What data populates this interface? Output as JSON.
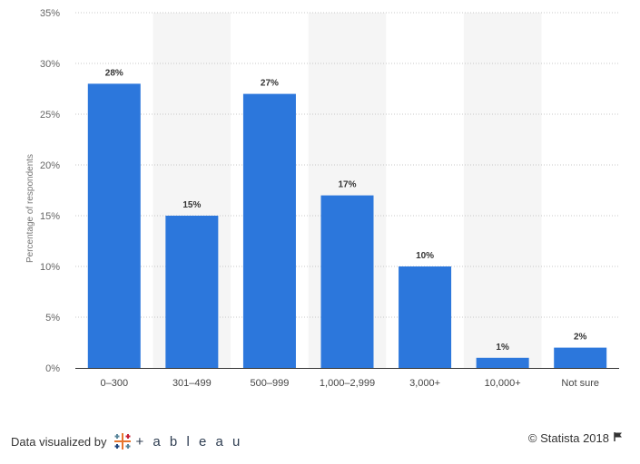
{
  "chart_data": {
    "type": "bar",
    "categories": [
      "0–300",
      "301–499",
      "500–999",
      "1,000–2,999",
      "3,000+",
      "10,000+",
      "Not sure"
    ],
    "values": [
      28,
      15,
      27,
      17,
      10,
      1,
      2
    ],
    "value_labels": [
      "28%",
      "15%",
      "27%",
      "17%",
      "10%",
      "1%",
      "2%"
    ],
    "ylabel": "Percentage of respondents",
    "ylim": [
      0,
      35
    ],
    "yticks": [
      0,
      5,
      10,
      15,
      20,
      25,
      30,
      35
    ],
    "ytick_labels": [
      "0%",
      "5%",
      "10%",
      "15%",
      "20%",
      "25%",
      "30%",
      "35%"
    ],
    "grid": true,
    "bar_color": "#2c77dc",
    "band_color": "#f5f5f5"
  },
  "footer": {
    "left_text": "Data visualized by",
    "brand": "+ a b l e a u",
    "right_text": "© Statista 2018"
  }
}
